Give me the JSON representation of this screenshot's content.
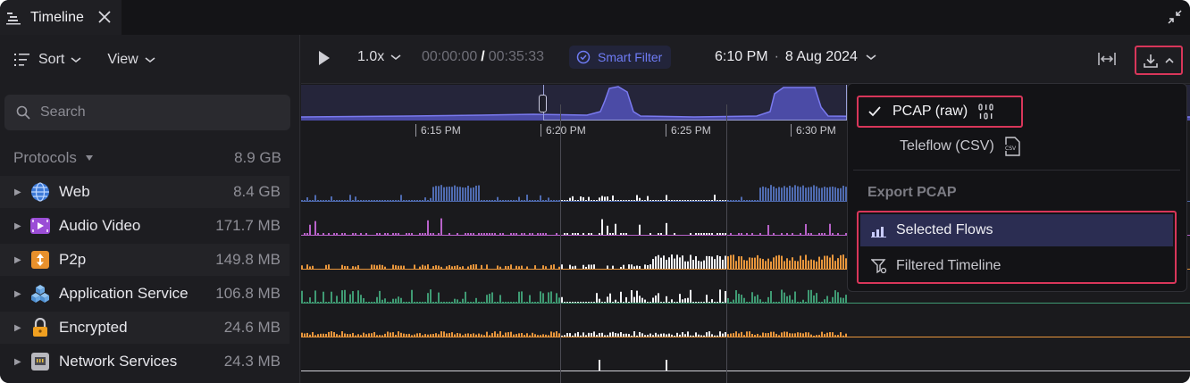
{
  "tab": {
    "title": "Timeline"
  },
  "sidebar": {
    "sort_label": "Sort",
    "view_label": "View",
    "search_placeholder": "Search",
    "protocols_header": "Protocols",
    "protocols_total": "8.9 GB",
    "items": [
      {
        "label": "Web",
        "size": "8.4 GB",
        "icon": "globe-icon"
      },
      {
        "label": "Audio Video",
        "size": "171.7 MB",
        "icon": "video-icon"
      },
      {
        "label": "P2p",
        "size": "149.8 MB",
        "icon": "p2p-icon"
      },
      {
        "label": "Application Service",
        "size": "106.8 MB",
        "icon": "cubes-icon"
      },
      {
        "label": "Encrypted",
        "size": "24.6 MB",
        "icon": "lock-icon"
      },
      {
        "label": "Network Services",
        "size": "24.3 MB",
        "icon": "network-icon"
      }
    ]
  },
  "controls": {
    "speed": "1.0x",
    "current_time": "00:00:00",
    "separator": "/",
    "total_time": "00:35:33",
    "smart_filter": "Smart Filter",
    "clock": "6:10 PM",
    "date": "8 Aug 2024",
    "dot": "·"
  },
  "axis": {
    "ticks": [
      "6:15 PM",
      "6:20 PM",
      "6:25 PM",
      "6:30 PM"
    ]
  },
  "export_menu": {
    "pcap_raw": "PCAP (raw)",
    "teleflow_csv": "Teleflow (CSV)",
    "section_title": "Export PCAP",
    "selected_flows": "Selected Flows",
    "filtered_timeline": "Filtered Timeline"
  },
  "colors": {
    "accent": "#6f7cf5",
    "highlight": "#d8365a",
    "web": "#4f6bb0",
    "audio_video": "#b862c9",
    "p2p": "#e8963c",
    "app_service": "#3f9a73",
    "encrypted": "#e8963c",
    "network": "#d0d0d6"
  }
}
